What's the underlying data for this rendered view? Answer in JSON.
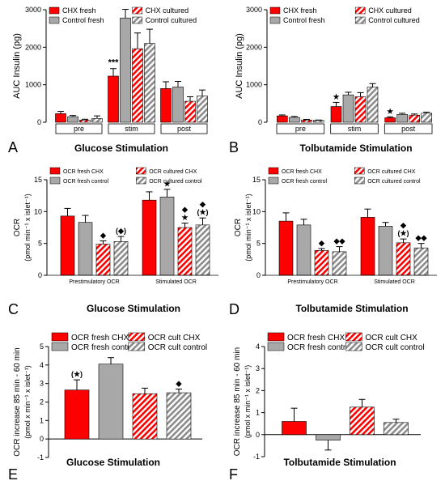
{
  "panel_letters": [
    "A",
    "B",
    "C",
    "D",
    "E",
    "F"
  ],
  "colors": {
    "chx_fresh": "#ff0000",
    "control_fresh": "#a8a8a8",
    "chx_cultured": "#ff0000",
    "control_cultured": "#a8a8a8",
    "error_bar": "#000000"
  },
  "chart_data": [
    {
      "id": "A",
      "type": "bar",
      "ylabel": "AUC Insulin (pg)",
      "xlabel": "Glucose Stimulation",
      "categories": [
        "pre",
        "stim",
        "post"
      ],
      "ylim": [
        0,
        3000
      ],
      "yticks": [
        "0",
        "1000",
        "2000",
        "3000"
      ],
      "legend": [
        "CHX fresh",
        "Control fresh",
        "CHX cultured",
        "Control cultured"
      ],
      "series": [
        {
          "name": "CHX fresh",
          "style": "solid-red",
          "values": [
            230,
            1230,
            900
          ],
          "errors": [
            60,
            200,
            180
          ]
        },
        {
          "name": "Control fresh",
          "style": "solid-gray",
          "values": [
            150,
            2780,
            940
          ],
          "errors": [
            30,
            230,
            150
          ]
        },
        {
          "name": "CHX cultured",
          "style": "hatch-red",
          "values": [
            60,
            1960,
            560
          ],
          "errors": [
            20,
            420,
            120
          ]
        },
        {
          "name": "Control cultured",
          "style": "hatch-gray",
          "values": [
            100,
            2100,
            700
          ],
          "errors": [
            70,
            380,
            160
          ]
        }
      ],
      "annotations": [
        {
          "category": 0,
          "series": 0,
          "text": "***",
          "category_index": 1
        }
      ]
    },
    {
      "id": "B",
      "type": "bar",
      "ylabel": "AUC Insulin (pg)",
      "xlabel": "Tolbutamide Stimulation",
      "categories": [
        "pre",
        "stim",
        "post"
      ],
      "ylim": [
        0,
        3000
      ],
      "yticks": [
        "0",
        "1000",
        "2000",
        "3000"
      ],
      "legend": [
        "CHX fresh",
        "Control fresh",
        "CHX cultured",
        "Control cultured"
      ],
      "series": [
        {
          "name": "CHX fresh",
          "style": "solid-red",
          "values": [
            170,
            420,
            120
          ],
          "errors": [
            25,
            110,
            25
          ]
        },
        {
          "name": "Control fresh",
          "style": "solid-gray",
          "values": [
            130,
            730,
            210
          ],
          "errors": [
            25,
            70,
            30
          ]
        },
        {
          "name": "CHX cultured",
          "style": "hatch-red",
          "values": [
            60,
            680,
            190
          ],
          "errors": [
            15,
            110,
            30
          ]
        },
        {
          "name": "Control cultured",
          "style": "hatch-gray",
          "values": [
            50,
            940,
            240
          ],
          "errors": [
            10,
            90,
            30
          ]
        }
      ],
      "annotations": [
        {
          "category_index": 1,
          "series": 0,
          "text": "★"
        },
        {
          "category_index": 2,
          "series": 0,
          "text": "★"
        }
      ]
    },
    {
      "id": "C",
      "type": "bar",
      "ylabel_line1": "OCR",
      "ylabel_line2": "(pmol min⁻¹ x islet⁻¹)",
      "xlabel": "Glucose Stimulation",
      "categories": [
        "Prestimulatory OCR",
        "Stimulated OCR"
      ],
      "ylim": [
        0,
        15
      ],
      "yticks": [
        "0",
        "5",
        "10",
        "15"
      ],
      "legend": [
        "OCR fresh CHX",
        "OCR fresh control",
        "OCR cultured CHX",
        "OCR cultured control"
      ],
      "series": [
        {
          "name": "OCR fresh CHX",
          "style": "solid-red",
          "values": [
            9.3,
            11.8
          ],
          "errors": [
            1.2,
            1.3
          ]
        },
        {
          "name": "OCR fresh control",
          "style": "solid-gray",
          "values": [
            8.3,
            12.3
          ],
          "errors": [
            1.1,
            1.2
          ]
        },
        {
          "name": "OCR cultured CHX",
          "style": "hatch-red",
          "values": [
            4.9,
            7.5
          ],
          "errors": [
            0.5,
            0.7
          ]
        },
        {
          "name": "OCR cultured control",
          "style": "hatch-gray",
          "values": [
            5.3,
            7.9
          ],
          "errors": [
            0.8,
            1.1
          ]
        }
      ],
      "annotations": [
        {
          "category_index": 0,
          "series": 2,
          "text": "◆"
        },
        {
          "category_index": 0,
          "series": 3,
          "text": "(◆)"
        },
        {
          "category_index": 1,
          "series": 1,
          "text": "★"
        },
        {
          "category_index": 1,
          "series": 2,
          "text": "◆"
        },
        {
          "category_index": 1,
          "series": 2,
          "text": "★",
          "row": 1
        },
        {
          "category_index": 1,
          "series": 3,
          "text": "◆"
        },
        {
          "category_index": 1,
          "series": 3,
          "text": "(★)",
          "row": 1
        }
      ]
    },
    {
      "id": "D",
      "type": "bar",
      "ylabel_line1": "OCR",
      "ylabel_line2": "(pmol min⁻¹ x islet⁻¹)",
      "xlabel": "Tolbutamide Stimulation",
      "categories": [
        "Prestimulatory OCR",
        "Stimulated OCR"
      ],
      "ylim": [
        0,
        15
      ],
      "yticks": [
        "0",
        "5",
        "10",
        "15"
      ],
      "legend": [
        "OCR fresh CHX",
        "OCR fresh control",
        "OCR cultured CHX",
        "OCR cultured control"
      ],
      "series": [
        {
          "name": "OCR fresh CHX",
          "style": "solid-red",
          "values": [
            8.5,
            9.1
          ],
          "errors": [
            1.3,
            1.3
          ]
        },
        {
          "name": "OCR fresh control",
          "style": "solid-gray",
          "values": [
            7.9,
            7.7
          ],
          "errors": [
            0.9,
            0.6
          ]
        },
        {
          "name": "OCR cultured CHX",
          "style": "hatch-red",
          "values": [
            3.9,
            5.1
          ],
          "errors": [
            0.3,
            0.6
          ]
        },
        {
          "name": "OCR cultured control",
          "style": "hatch-gray",
          "values": [
            3.7,
            4.3
          ],
          "errors": [
            0.8,
            0.7
          ]
        }
      ],
      "annotations": [
        {
          "category_index": 0,
          "series": 2,
          "text": "◆"
        },
        {
          "category_index": 0,
          "series": 3,
          "text": "◆◆"
        },
        {
          "category_index": 1,
          "series": 2,
          "text": "◆"
        },
        {
          "category_index": 1,
          "series": 2,
          "text": "(★)",
          "row": 1
        },
        {
          "category_index": 1,
          "series": 3,
          "text": "◆◆"
        }
      ]
    },
    {
      "id": "E",
      "type": "bar",
      "ylabel_line1": "OCR increase 85 min - 60 min",
      "ylabel_line2": "(pmol x min⁻¹ x islet⁻¹)",
      "xlabel": "Glucose Stimulation",
      "categories": [
        ""
      ],
      "ylim": [
        -1,
        5
      ],
      "yticks": [
        "-1",
        "0",
        "1",
        "2",
        "3",
        "4",
        "5"
      ],
      "legend": [
        "OCR fresh CHX",
        "OCR fresh control",
        "OCR cult CHX",
        "OCR cult control"
      ],
      "series": [
        {
          "name": "OCR fresh CHX",
          "style": "solid-red",
          "values": [
            2.65
          ],
          "errors": [
            0.55
          ]
        },
        {
          "name": "OCR fresh control",
          "style": "solid-gray",
          "values": [
            4.05
          ],
          "errors": [
            0.35
          ]
        },
        {
          "name": "OCR cult CHX",
          "style": "hatch-red",
          "values": [
            2.45
          ],
          "errors": [
            0.3
          ]
        },
        {
          "name": "OCR cult control",
          "style": "hatch-gray",
          "values": [
            2.5
          ],
          "errors": [
            0.2
          ]
        }
      ],
      "annotations": [
        {
          "category_index": 0,
          "series": 0,
          "text": "(★)"
        },
        {
          "category_index": 0,
          "series": 3,
          "text": "◆"
        }
      ]
    },
    {
      "id": "F",
      "type": "bar",
      "ylabel_line1": "OCR increase 85 min - 60 min",
      "ylabel_line2": "(pmol x min⁻¹ x islet⁻¹)",
      "xlabel": "Tolbutamide Stimulation",
      "categories": [
        ""
      ],
      "ylim": [
        -1,
        4
      ],
      "yticks": [
        "-1",
        "0",
        "1",
        "2",
        "3",
        "4"
      ],
      "legend": [
        "OCR fresh CHX",
        "OCR fresh control",
        "OCR cult CHX",
        "OCR cult control"
      ],
      "series": [
        {
          "name": "OCR fresh CHX",
          "style": "solid-red",
          "values": [
            0.6
          ],
          "errors": [
            0.6
          ]
        },
        {
          "name": "OCR fresh control",
          "style": "solid-gray",
          "values": [
            -0.25
          ],
          "errors": [
            0.45
          ]
        },
        {
          "name": "OCR cult CHX",
          "style": "hatch-red",
          "values": [
            1.25
          ],
          "errors": [
            0.35
          ]
        },
        {
          "name": "OCR cult control",
          "style": "hatch-gray",
          "values": [
            0.55
          ],
          "errors": [
            0.15
          ]
        }
      ],
      "annotations": []
    }
  ]
}
